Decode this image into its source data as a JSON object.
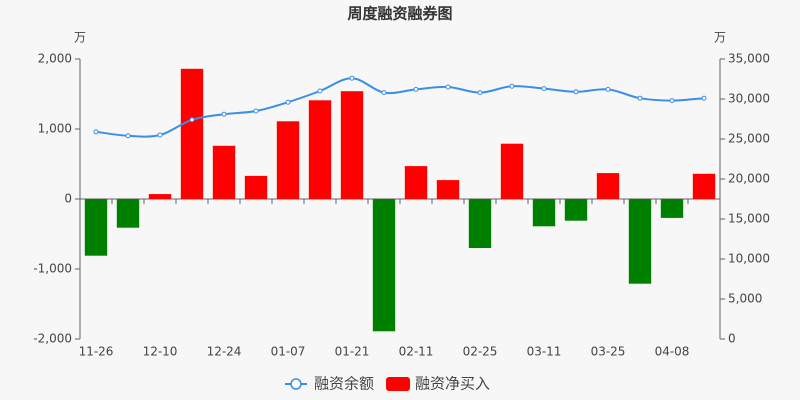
{
  "chart_data": {
    "type": "bar",
    "title": "周度融资融券图",
    "y_unit": "万",
    "y2_unit": "万",
    "categories": [
      "11-26",
      null,
      "12-10",
      null,
      "12-24",
      null,
      "01-07",
      null,
      "01-21",
      null,
      "02-11",
      null,
      "02-25",
      null,
      "03-11",
      null,
      "03-25",
      null,
      "04-08",
      null
    ],
    "series": [
      {
        "name": "融资余额",
        "type": "line",
        "axis": "y2",
        "color": "#3a8ee6",
        "values": [
          25900,
          25400,
          25500,
          27400,
          28100,
          28500,
          29600,
          31000,
          32600,
          30800,
          31200,
          31500,
          30800,
          31600,
          31300,
          30900,
          31200,
          30100,
          29800,
          30100
        ]
      },
      {
        "name": "融资净买入",
        "type": "bar",
        "color": "#ff0000",
        "negative_color": "#008000",
        "values": [
          -810,
          -410,
          70,
          1860,
          760,
          330,
          1110,
          1410,
          1540,
          -1890,
          470,
          270,
          -700,
          790,
          -390,
          -310,
          370,
          -1210,
          -270,
          360
        ]
      }
    ],
    "ylim": [
      -2000,
      2000
    ],
    "yticks": [
      {
        "value": 2000,
        "label": "2,000"
      },
      {
        "value": 1000,
        "label": "1,000"
      },
      0,
      {
        "value": -1000,
        "label": "-1,000"
      },
      {
        "value": -2000,
        "label": "-2,000"
      }
    ],
    "y2lim": [
      0,
      35000
    ],
    "y2ticks": [
      0,
      {
        "value": 5000,
        "label": "5,000"
      },
      {
        "value": 10000,
        "label": "10,000"
      },
      {
        "value": 15000,
        "label": "15,000"
      },
      {
        "value": 20000,
        "label": "20,000"
      },
      {
        "value": 25000,
        "label": "25,000"
      },
      {
        "value": 30000,
        "label": "30,000"
      },
      {
        "value": 35000,
        "label": "35,000"
      }
    ],
    "grid": false
  }
}
